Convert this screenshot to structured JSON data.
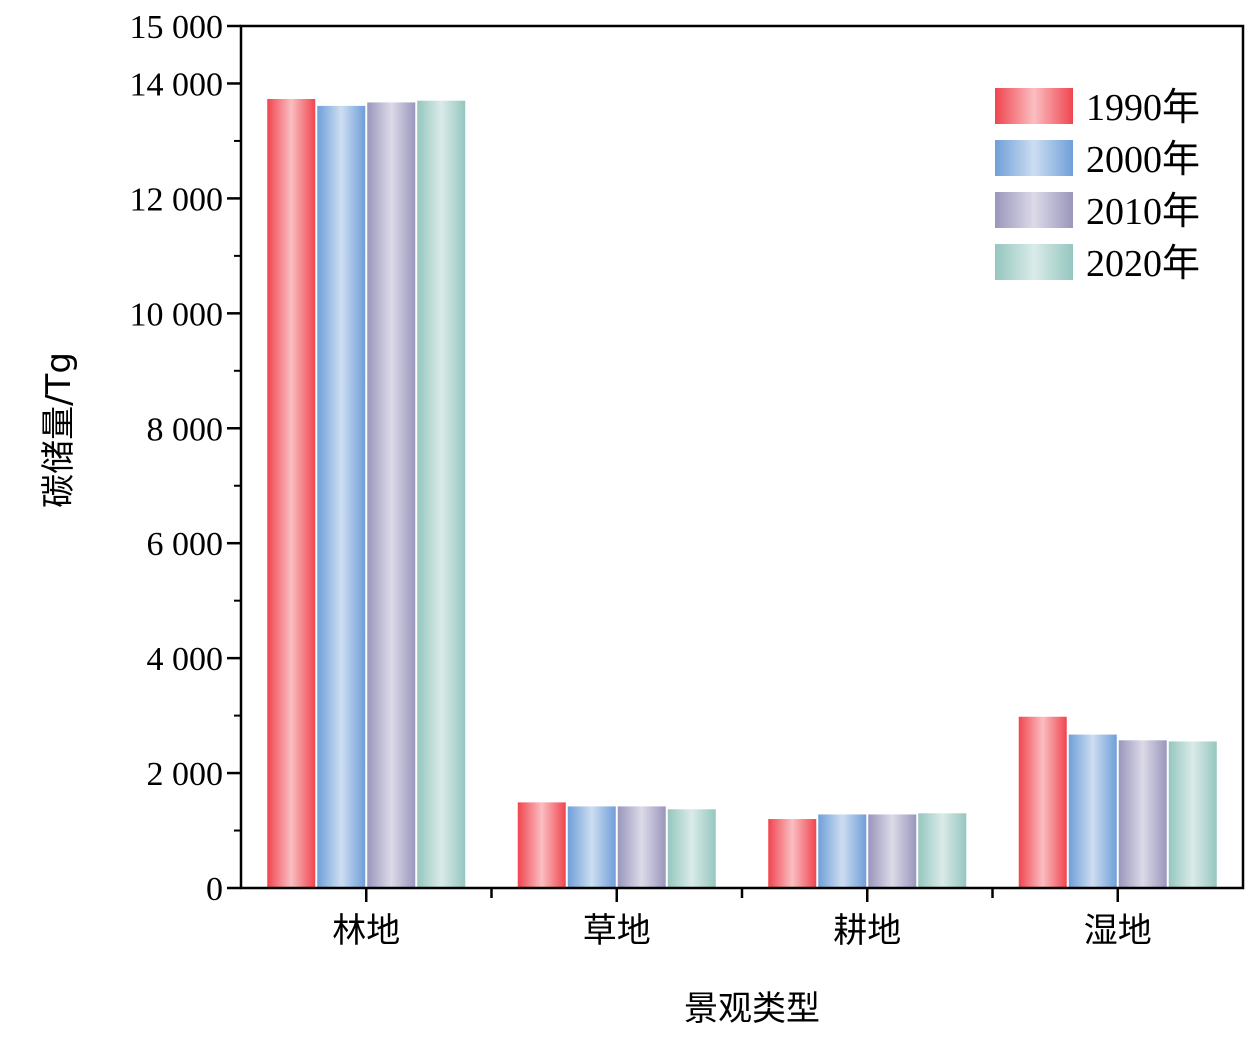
{
  "chart_data": {
    "type": "bar",
    "categories": [
      "林地",
      "草地",
      "耕地",
      "湿地"
    ],
    "series": [
      {
        "name": "1990年",
        "values": [
          13730,
          1490,
          1200,
          2980
        ],
        "color": "#f0454f"
      },
      {
        "name": "2000年",
        "values": [
          13610,
          1420,
          1280,
          2670
        ],
        "color": "#6f9fd8"
      },
      {
        "name": "2010年",
        "values": [
          13670,
          1420,
          1280,
          2570
        ],
        "color": "#9a96bc"
      },
      {
        "name": "2020年",
        "values": [
          13700,
          1370,
          1300,
          2550
        ],
        "color": "#95c6bf"
      }
    ],
    "title": "",
    "xlabel": "景观类型",
    "ylabel": "碳储量/Tg",
    "ylim": [
      0,
      15000
    ],
    "y_ticks": [
      0,
      2000,
      4000,
      6000,
      8000,
      10000,
      12000,
      14000,
      15000
    ],
    "y_tick_labels": [
      "0",
      "2 000",
      "4 000",
      "6 000",
      "8 000",
      "10 000",
      "12 000",
      "14 000",
      "15 000"
    ],
    "legend_position": "top-right",
    "grid": false
  }
}
